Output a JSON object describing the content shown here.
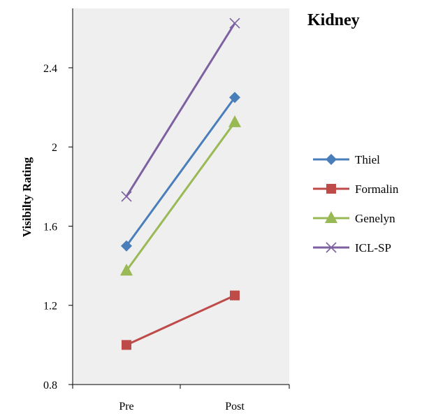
{
  "chart_data": {
    "type": "line",
    "title": "Kidney",
    "xlabel": "",
    "ylabel": "Visibilty Rating",
    "categories": [
      "Pre",
      "Post"
    ],
    "ylim": [
      0.8,
      2.7
    ],
    "yticks": [
      "0.8",
      "1.2",
      "1.6",
      "2",
      "2.4"
    ],
    "grid": false,
    "legend_position": "right",
    "plot_background": "#efefef",
    "series": [
      {
        "name": "Thiel",
        "values": [
          1.5,
          2.25
        ],
        "color": "#4a7ebb",
        "marker": "diamond"
      },
      {
        "name": "Formalin",
        "values": [
          1.0,
          1.25
        ],
        "color": "#be4b48",
        "marker": "square"
      },
      {
        "name": "Genelyn",
        "values": [
          1.375,
          2.125
        ],
        "color": "#98b954",
        "marker": "triangle"
      },
      {
        "name": "ICL-SP",
        "values": [
          1.75,
          2.625
        ],
        "color": "#7d60a0",
        "marker": "x"
      }
    ]
  }
}
